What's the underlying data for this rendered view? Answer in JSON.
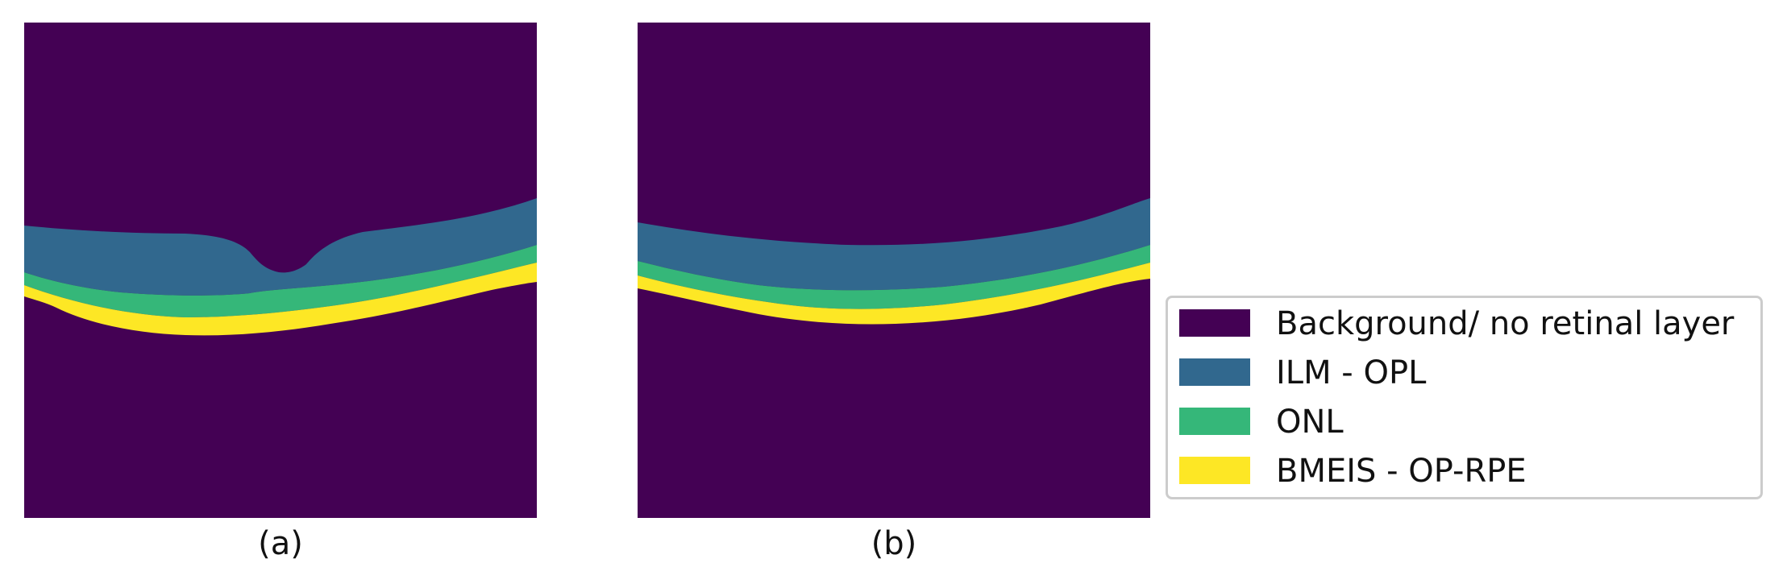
{
  "panels": [
    {
      "caption": "(a)"
    },
    {
      "caption": "(b)"
    }
  ],
  "legend": [
    {
      "label": "Background/ no retinal layer",
      "color": "#440154"
    },
    {
      "label": "ILM - OPL",
      "color": "#31688e"
    },
    {
      "label": "ONL",
      "color": "#35b779"
    },
    {
      "label": "BMEIS - OP-RPE",
      "color": "#fde725"
    }
  ]
}
